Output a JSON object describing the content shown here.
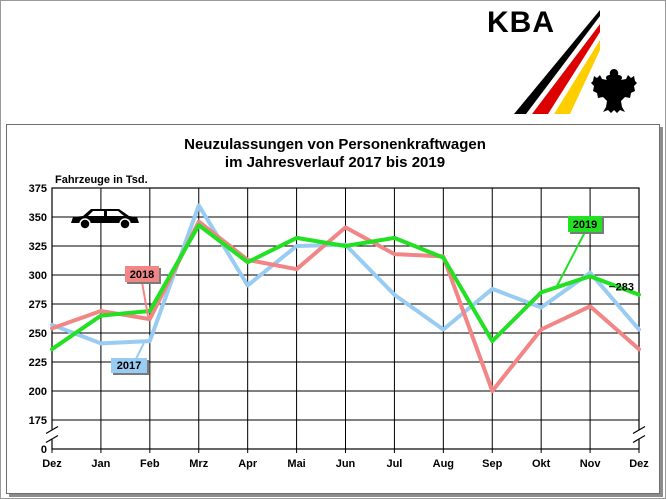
{
  "header": {
    "logo_text": "KBA",
    "flag_colors": [
      "#000000",
      "#dd0000",
      "#ffce00"
    ]
  },
  "chart_data": {
    "type": "line",
    "title_lines": [
      "Neuzulassungen von Personenkraftwagen",
      "im Jahresverlauf 2017 bis 2019"
    ],
    "ylabel": "Fahrzeuge in Tsd.",
    "categories": [
      "Dez",
      "Jan",
      "Feb",
      "Mrz",
      "Apr",
      "Mai",
      "Jun",
      "Jul",
      "Aug",
      "Sep",
      "Okt",
      "Nov",
      "Dez"
    ],
    "y_ticks": [
      0,
      175,
      200,
      225,
      250,
      275,
      300,
      325,
      350,
      375
    ],
    "ylim": [
      175,
      375
    ],
    "y_axis_break": true,
    "grid": true,
    "series": [
      {
        "name": "2017",
        "color": "#99ccf2",
        "label_color": "#99ccf2",
        "values": [
          257,
          241,
          243,
          360,
          291,
          325,
          326,
          283,
          253,
          288,
          272,
          302,
          253
        ]
      },
      {
        "name": "2018",
        "color": "#f28585",
        "label_color": "#f28585",
        "values": [
          254,
          269,
          262,
          346,
          313,
          305,
          341,
          318,
          316,
          200,
          253,
          273,
          236
        ]
      },
      {
        "name": "2019",
        "color": "#22e022",
        "label_color": "#22e022",
        "values": [
          236,
          265,
          269,
          343,
          311,
          332,
          325,
          332,
          315,
          243,
          285,
          299,
          283
        ]
      }
    ],
    "end_label": "283",
    "icon": "car-icon"
  }
}
